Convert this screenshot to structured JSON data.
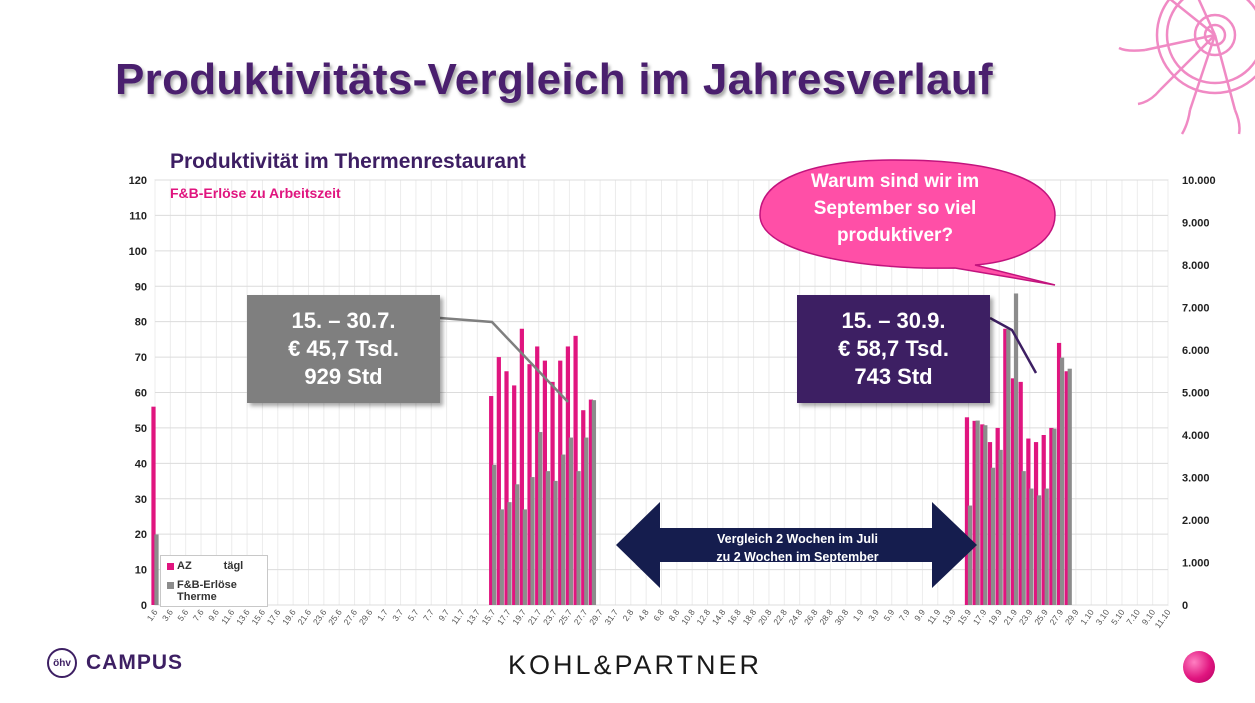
{
  "slide": {
    "title": "Produktivitäts-Vergleich im Jahresverlauf",
    "logos": {
      "campus": "CAMPUS",
      "campus_emblem": "öhv",
      "kohl": "KOHL&PARTNER"
    },
    "decor": [
      "ship-wheel-icon",
      "pink-dot-icon"
    ]
  },
  "chart_data": {
    "type": "bar",
    "title": "Produktivität im Thermenrestaurant",
    "subtitle": "F&B-Erlöse zu Arbeitszeit",
    "y_left": {
      "range": [
        0,
        120
      ],
      "ticks": [
        "0",
        "10",
        "20",
        "30",
        "40",
        "50",
        "60",
        "70",
        "80",
        "90",
        "100",
        "110",
        "120"
      ]
    },
    "y_right": {
      "range": [
        0,
        10000
      ],
      "ticks": [
        "0",
        "1.000",
        "2.000",
        "3.000",
        "4.000",
        "5.000",
        "6.000",
        "7.000",
        "8.000",
        "9.000",
        "10.000"
      ]
    },
    "grid": true,
    "stacked": true,
    "series": [
      {
        "name": "AZ täglich",
        "color": "#e0157f",
        "axis": "left"
      },
      {
        "name": "F&B-Erlöse Therme",
        "color": "#8c8c8c",
        "axis": "right"
      }
    ],
    "x_labels": [
      "1.6",
      "3.6",
      "5.6",
      "7.6",
      "9.6",
      "11.6",
      "13.6",
      "15.6",
      "17.6",
      "19.6",
      "21.6",
      "23.6",
      "25.6",
      "27.6",
      "29.6",
      "1.7",
      "3.7",
      "5.7",
      "7.7",
      "9.7",
      "11.7",
      "13.7",
      "15.7",
      "17.7",
      "19.7",
      "21.7",
      "23.7",
      "25.7",
      "27.7",
      "29.7",
      "31.7",
      "2.8",
      "4.8",
      "6.8",
      "8.8",
      "10.8",
      "12.8",
      "14.8",
      "16.8",
      "18.8",
      "20.8",
      "22.8",
      "24.8",
      "26.8",
      "28.8",
      "30.8",
      "1.9",
      "3.9",
      "5.9",
      "7.9",
      "9.9",
      "11.9",
      "13.9",
      "15.9",
      "17.9",
      "19.9",
      "21.9",
      "23.9",
      "25.9",
      "27.9",
      "29.9",
      "1.10",
      "3.10",
      "5.10",
      "7.10",
      "9.10",
      "11.10"
    ],
    "bars": [
      {
        "date": "1.6",
        "az": 56,
        "fb": 1660
      },
      {
        "date": "15.7",
        "az": 59,
        "fb": 3300
      },
      {
        "date": "16.7",
        "az": 70,
        "fb": 2250
      },
      {
        "date": "17.7",
        "az": 66,
        "fb": 2420
      },
      {
        "date": "18.7",
        "az": 62,
        "fb": 2840
      },
      {
        "date": "19.7",
        "az": 78,
        "fb": 2250
      },
      {
        "date": "20.7",
        "az": 68,
        "fb": 3010
      },
      {
        "date": "21.7",
        "az": 73,
        "fb": 4070
      },
      {
        "date": "22.7",
        "az": 69,
        "fb": 3150
      },
      {
        "date": "23.7",
        "az": 63,
        "fb": 2920
      },
      {
        "date": "24.7",
        "az": 69,
        "fb": 3540
      },
      {
        "date": "25.7",
        "az": 73,
        "fb": 3940
      },
      {
        "date": "26.7",
        "az": 76,
        "fb": 3150
      },
      {
        "date": "27.7",
        "az": 55,
        "fb": 3940
      },
      {
        "date": "28.7",
        "az": 58,
        "fb": 4820
      },
      {
        "date": "15.9",
        "az": 53,
        "fb": 2340
      },
      {
        "date": "16.9",
        "az": 52,
        "fb": 4340
      },
      {
        "date": "17.9",
        "az": 51,
        "fb": 4230
      },
      {
        "date": "18.9",
        "az": 46,
        "fb": 3230
      },
      {
        "date": "19.9",
        "az": 50,
        "fb": 3650
      },
      {
        "date": "20.9",
        "az": 78,
        "fb": 6490
      },
      {
        "date": "21.9",
        "az": 64,
        "fb": 7330
      },
      {
        "date": "22.9",
        "az": 63,
        "fb": 3150
      },
      {
        "date": "23.9",
        "az": 47,
        "fb": 2740
      },
      {
        "date": "24.9",
        "az": 46,
        "fb": 2580
      },
      {
        "date": "25.9",
        "az": 48,
        "fb": 2740
      },
      {
        "date": "26.9",
        "az": 50,
        "fb": 4150
      },
      {
        "date": "27.9",
        "az": 74,
        "fb": 5820
      },
      {
        "date": "28.9",
        "az": 66,
        "fb": 5560
      }
    ],
    "annotations": {
      "july_box": [
        "15. – 30.7.",
        "€ 45,7 Tsd.",
        "929 Std"
      ],
      "sept_box": [
        "15. – 30.9.",
        "€ 58,7 Tsd.",
        "743 Std"
      ],
      "bubble": [
        "Warum sind wir im",
        "September so viel",
        "produktiver?"
      ],
      "arrow": [
        "Vergleich 2 Wochen im Juli",
        "zu 2 Wochen im September"
      ]
    },
    "legend": {
      "position": "bottom-left",
      "az_label": "AZ",
      "az_suffix": "tägl",
      "fb_line1": "F&B-Erlöse",
      "fb_line2": "Therme"
    }
  }
}
